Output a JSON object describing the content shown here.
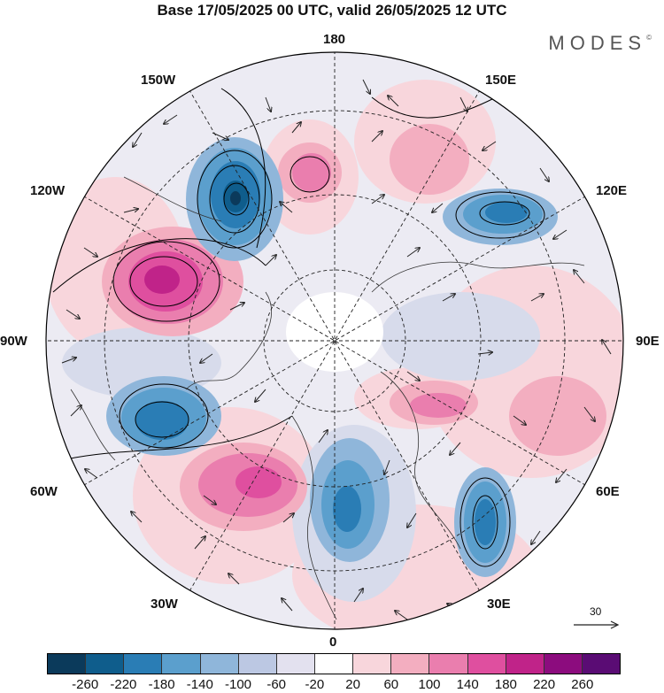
{
  "header": {
    "title": "Base 17/05/2025 00 UTC, valid 26/05/2025 12 UTC",
    "brand": "MODES",
    "brand_mark": "©"
  },
  "map": {
    "projection": "north-polar-stereographic",
    "longitude_labels": {
      "deg180": "180",
      "w150": "150W",
      "e150": "150E",
      "w120": "120W",
      "e120": "120E",
      "w90": "90W",
      "e90": "90E",
      "w60": "60W",
      "e60": "60E",
      "w30": "30W",
      "e30": "30E",
      "deg0": "0"
    },
    "reference_vector": "30"
  },
  "colorbar": {
    "colors": [
      "#0b3a5b",
      "#0f5d8c",
      "#2a7db5",
      "#5b9fcd",
      "#8fb6da",
      "#bcc8e3",
      "#e3e1ef",
      "#ffffff",
      "#f8d6dc",
      "#f3aec0",
      "#ea7eae",
      "#df4f9f",
      "#c02389",
      "#8c0c7e",
      "#5a0c74"
    ],
    "tick_labels": [
      "-260",
      "-220",
      "-180",
      "-140",
      "-100",
      "-60",
      "-20",
      "20",
      "60",
      "100",
      "140",
      "180",
      "220",
      "260"
    ]
  }
}
